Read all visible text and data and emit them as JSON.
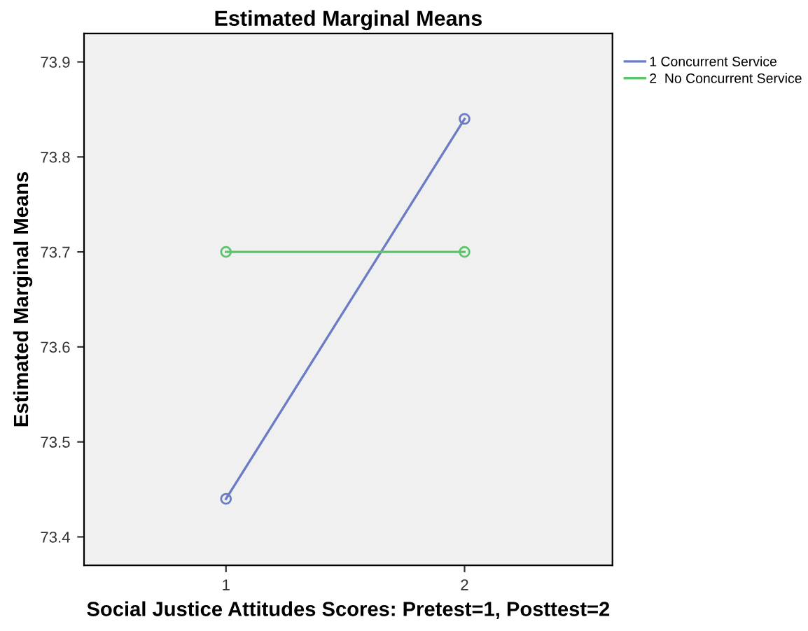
{
  "chart_data": {
    "type": "line",
    "title": "Estimated Marginal Means",
    "xlabel": "Social Justice Attitudes Scores: Pretest=1, Posttest=2",
    "ylabel": "Estimated Marginal Means",
    "categories": [
      "1",
      "2"
    ],
    "series": [
      {
        "name": "1 Concurrent Service",
        "color": "#6b7cc4",
        "values": [
          73.44,
          73.84
        ]
      },
      {
        "name": "2  No Concurrent Service",
        "color": "#5cc46a",
        "values": [
          73.7,
          73.7
        ]
      }
    ],
    "ylim": [
      73.37,
      73.93
    ],
    "yticks": [
      73.4,
      73.5,
      73.6,
      73.7,
      73.8,
      73.9
    ],
    "marker": "circle",
    "grid": false,
    "legend": "top right"
  }
}
